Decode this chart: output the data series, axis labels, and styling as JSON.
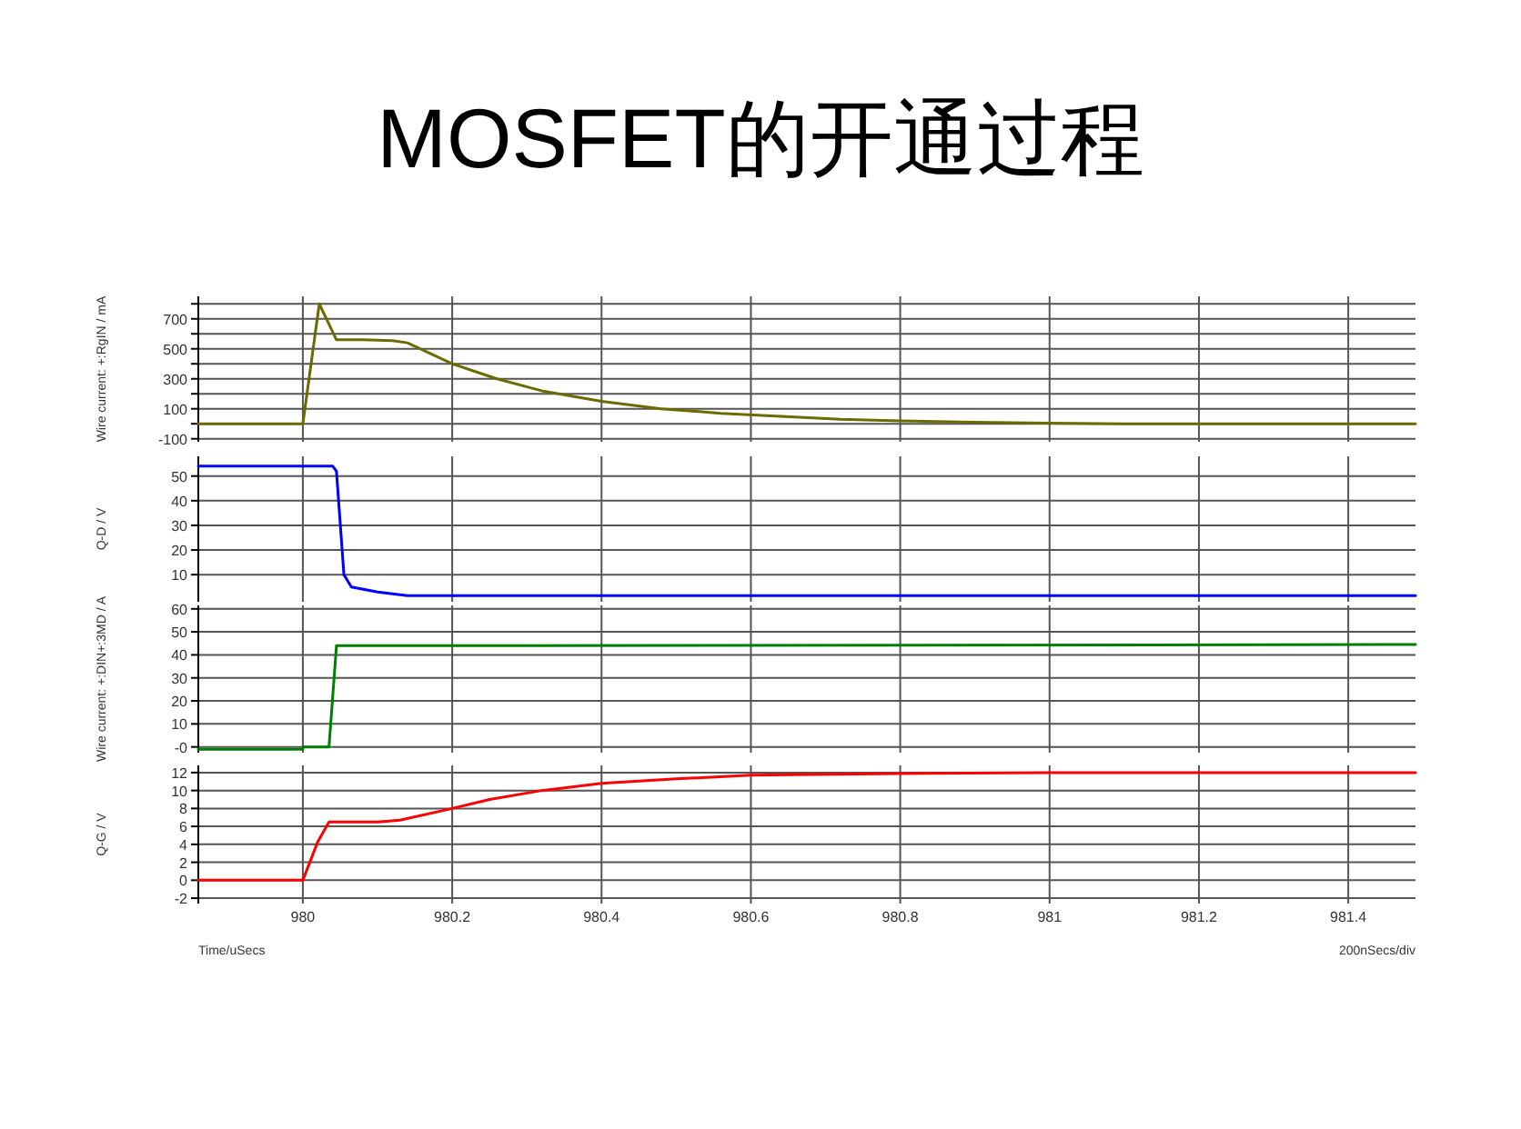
{
  "chart_data": [
    {
      "type": "line",
      "title": "MOSFET的开通过程",
      "ylabel": "Wire current: +:RgIN / mA",
      "color": "#6b6b00",
      "grid": true,
      "tick_labels": "y",
      "x": [
        979.86,
        980.0,
        980.022,
        980.045,
        980.08,
        980.12,
        980.14,
        980.2,
        980.26,
        980.32,
        980.4,
        980.48,
        980.56,
        980.64,
        980.72,
        980.8,
        980.9,
        981.0,
        981.1,
        981.49
      ],
      "values": [
        0,
        0,
        800,
        560,
        560,
        555,
        540,
        400,
        300,
        220,
        150,
        100,
        70,
        50,
        30,
        20,
        10,
        5,
        0,
        0
      ],
      "xlim": [
        979.86,
        981.49
      ],
      "xticks": [
        980,
        980.2,
        980.4,
        980.6,
        980.8,
        981,
        981.2,
        981.4
      ],
      "ylim": [
        -120,
        850
      ],
      "yticks": [
        -100,
        {
          "value": 0,
          "label": null
        },
        100,
        {
          "value": 200,
          "label": null
        },
        300,
        {
          "value": 400,
          "label": null
        },
        500,
        {
          "value": 600,
          "label": null
        },
        700,
        {
          "value": 800,
          "label": null
        }
      ]
    },
    {
      "type": "line",
      "ylabel": "Q-D / V",
      "color": "#0000ff",
      "grid": true,
      "tick_labels": "y",
      "x": [
        979.86,
        980.04,
        980.045,
        980.055,
        980.065,
        980.1,
        980.14,
        981.49
      ],
      "values": [
        54,
        54,
        52,
        10,
        5,
        3,
        1.5,
        1.5
      ],
      "xlim": [
        979.86,
        981.49
      ],
      "xticks": [
        980,
        980.2,
        980.4,
        980.6,
        980.8,
        981,
        981.2,
        981.4
      ],
      "ylim": [
        -1,
        58
      ],
      "yticks": [
        10,
        20,
        30,
        40,
        50
      ]
    },
    {
      "type": "line",
      "ylabel": "Wire current: +:DIN+:3MD / A",
      "color": "#008000",
      "grid": true,
      "tick_labels": "y",
      "x": [
        979.86,
        980.0,
        980.0,
        980.035,
        980.045,
        980.3,
        981.49
      ],
      "values": [
        -1,
        -1,
        0,
        0,
        44,
        44,
        44.5
      ],
      "xlim": [
        979.86,
        981.49
      ],
      "xticks": [
        980,
        980.2,
        980.4,
        980.6,
        980.8,
        981,
        981.2,
        981.4
      ],
      "ylim": [
        -2.5,
        61.5
      ],
      "yticks": [
        {
          "value": 0,
          "label": "-0"
        },
        10,
        20,
        30,
        40,
        50,
        60
      ]
    },
    {
      "type": "line",
      "ylabel": "Q-G / V",
      "color": "#ff0000",
      "grid": true,
      "x": [
        979.86,
        980.0,
        980.02,
        980.035,
        980.1,
        980.13,
        980.2,
        980.25,
        980.32,
        980.4,
        980.5,
        980.6,
        980.8,
        981.0,
        981.49
      ],
      "values": [
        0,
        0,
        4.3,
        6.5,
        6.5,
        6.7,
        8,
        9,
        10,
        10.8,
        11.3,
        11.7,
        11.9,
        12,
        12
      ],
      "xlim": [
        979.86,
        981.49
      ],
      "xticks": [
        980,
        980.2,
        980.4,
        980.6,
        980.8,
        981,
        981.2,
        981.4
      ],
      "ylim": [
        -2.6,
        12.8
      ],
      "yticks": [
        -2,
        0,
        2,
        4,
        6,
        8,
        10,
        12
      ],
      "annotations": [
        "Time/uSecs",
        "200nSecs/div"
      ]
    }
  ]
}
